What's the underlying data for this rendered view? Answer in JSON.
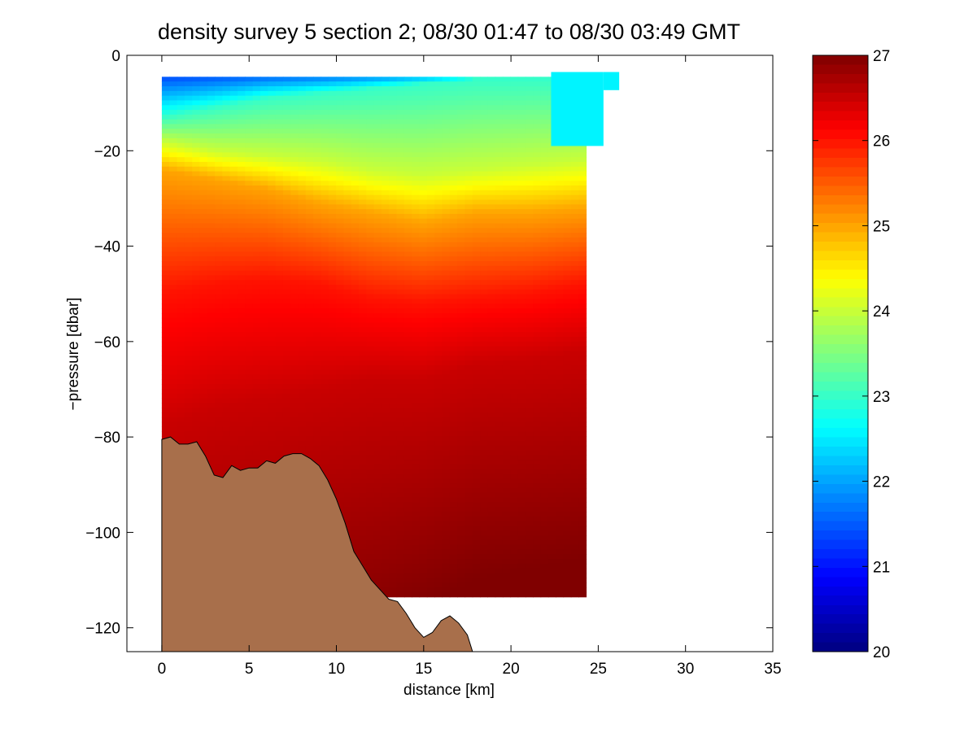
{
  "chart_data": [
    {
      "type": "heatmap",
      "title": "density survey 5 section 2; 08/30 01:47 to 08/30 03:49 GMT",
      "xlabel": "distance [km]",
      "ylabel": "−pressure [dbar]",
      "xlim": [
        -2,
        35
      ],
      "ylim": [
        -125,
        0
      ],
      "x_ticks": [
        0,
        5,
        10,
        15,
        20,
        25,
        30,
        35
      ],
      "y_ticks": [
        0,
        -20,
        -40,
        -60,
        -80,
        -100,
        -120
      ],
      "x_tick_labels": [
        "0",
        "5",
        "10",
        "15",
        "20",
        "25",
        "30",
        "35"
      ],
      "y_tick_labels": [
        "0",
        "−20",
        "−40",
        "−60",
        "−80",
        "−100",
        "−120"
      ],
      "grid": false,
      "colormap": "jet",
      "data_extent": {
        "x": [
          0,
          24.3
        ],
        "y": [
          -113.5,
          -4.5
        ]
      },
      "top_extension": {
        "x": [
          22.3,
          26.2
        ],
        "y": [
          -19,
          -3.5
        ]
      },
      "density_profiles": {
        "x": [
          0,
          3,
          6,
          9,
          12,
          15,
          18,
          21,
          24.3
        ],
        "depth_23": [
          -13,
          -11,
          -9,
          -8,
          -7,
          -6,
          -5,
          -5,
          -5
        ],
        "depth_24": [
          -18,
          -20,
          -21,
          -22,
          -24,
          -25,
          -24,
          -23,
          -22
        ],
        "depth_25": [
          -24,
          -26,
          -28,
          -31,
          -33,
          -35,
          -33,
          -33,
          -32
        ],
        "depth_26": [
          -50,
          -48,
          -47,
          -48,
          -51,
          -52,
          -51,
          -50,
          -48
        ],
        "depth_26_5": [
          -78,
          -74,
          -72,
          -70,
          -68,
          -68,
          -65,
          -64,
          -62
        ],
        "depth_27": [
          -140,
          -135,
          -130,
          -125,
          -122,
          -116,
          -110,
          -108,
          -106
        ]
      },
      "bathymetry": {
        "color": "#a86f4b",
        "x": [
          0,
          0.5,
          1,
          1.5,
          2,
          2.5,
          3,
          3.5,
          4,
          4.5,
          5,
          5.5,
          6,
          6.5,
          7,
          7.5,
          8,
          8.5,
          9,
          9.5,
          10,
          10.5,
          11,
          11.5,
          12,
          12.5,
          13,
          13.5,
          14,
          14.5,
          15,
          15.5,
          16,
          16.5,
          17,
          17.5,
          17.8
        ],
        "y": [
          -80.5,
          -80,
          -81.5,
          -81.5,
          -81,
          -84,
          -88,
          -88.5,
          -86,
          -87,
          -86.5,
          -86.5,
          -85,
          -85.5,
          -84,
          -83.5,
          -83.5,
          -84.5,
          -86,
          -89,
          -93,
          -98,
          -104,
          -107,
          -110,
          -112,
          -114,
          -114.5,
          -117,
          -120,
          -122,
          -121,
          -118.5,
          -117.5,
          -119,
          -121.5,
          -125
        ]
      },
      "colorbar": {
        "range": [
          20,
          27
        ],
        "ticks": [
          20,
          21,
          22,
          23,
          24,
          25,
          26,
          27
        ],
        "tick_labels": [
          "20",
          "21",
          "22",
          "23",
          "24",
          "25",
          "26",
          "27"
        ]
      }
    }
  ]
}
